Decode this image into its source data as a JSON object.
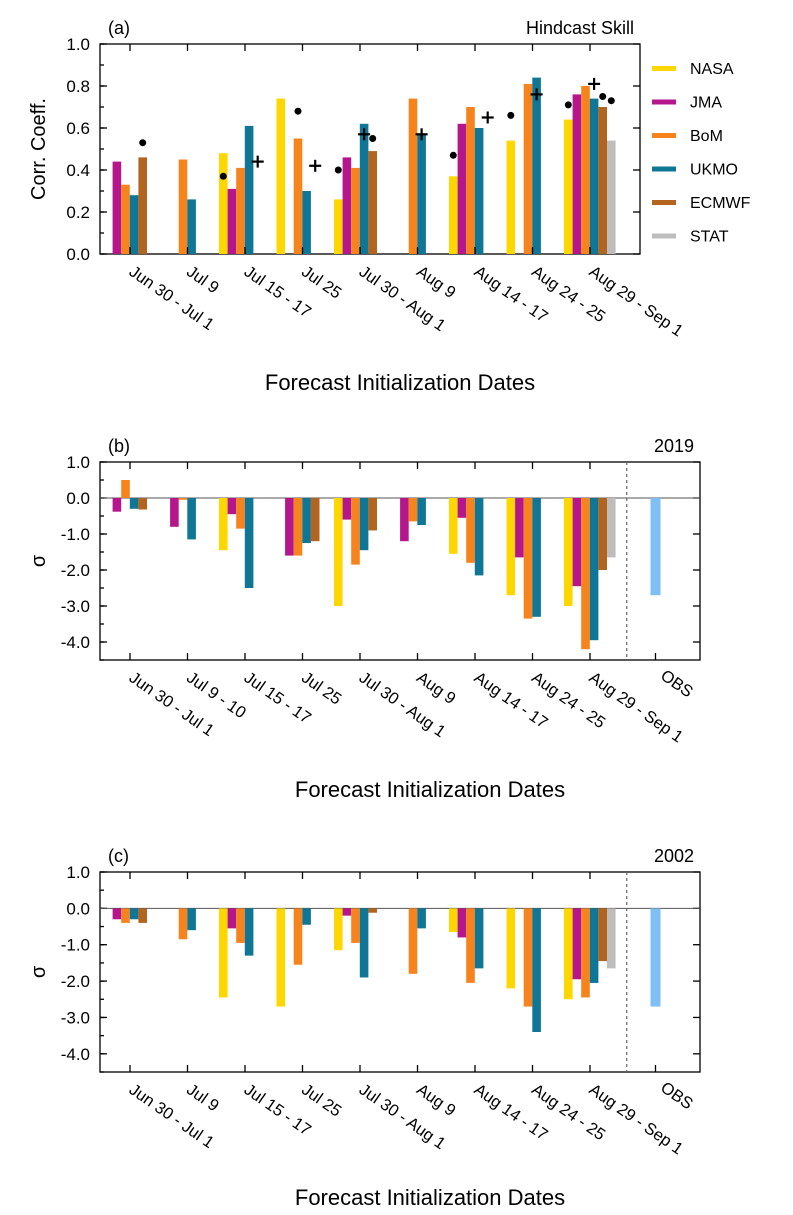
{
  "legend": [
    {
      "name": "NASA",
      "color": "#ffd700"
    },
    {
      "name": "JMA",
      "color": "#b5168c"
    },
    {
      "name": "BoM",
      "color": "#f7831d"
    },
    {
      "name": "UKMO",
      "color": "#0f7696"
    },
    {
      "name": "ECMWF",
      "color": "#b3641e"
    },
    {
      "name": "STAT",
      "color": "#bdbdbd"
    }
  ],
  "chart_data": [
    {
      "type": "bar",
      "panel_label": "(a)",
      "title": "Hindcast Skill",
      "ylabel": "Corr. Coeff.",
      "xlabel": "Forecast Initialization Dates",
      "ylim": [
        0.0,
        1.0
      ],
      "yticks": [
        "0.0",
        "0.2",
        "0.4",
        "0.6",
        "0.8",
        "1.0"
      ],
      "categories": [
        "Jun 30 - Jul 1",
        "Jul 9",
        "Jul 15 - 17",
        "Jul 25",
        "Jul 30 - Aug 1",
        "Aug 9",
        "Aug 14 - 17",
        "Aug 24 - 25",
        "Aug 29 - Sep 1"
      ],
      "series": [
        {
          "name": "NASA",
          "values": [
            null,
            null,
            0.48,
            0.74,
            0.26,
            null,
            0.37,
            0.54,
            0.64
          ]
        },
        {
          "name": "JMA",
          "values": [
            0.44,
            null,
            0.31,
            null,
            0.46,
            null,
            0.62,
            null,
            0.76
          ]
        },
        {
          "name": "BoM",
          "values": [
            0.33,
            0.45,
            0.41,
            0.55,
            0.41,
            0.74,
            0.7,
            0.81,
            0.8
          ]
        },
        {
          "name": "UKMO",
          "values": [
            0.28,
            0.26,
            0.61,
            0.3,
            0.62,
            0.57,
            0.6,
            0.84,
            0.74
          ]
        },
        {
          "name": "ECMWF",
          "values": [
            0.46,
            null,
            null,
            null,
            0.49,
            null,
            null,
            null,
            0.7
          ]
        },
        {
          "name": "STAT",
          "values": [
            null,
            null,
            null,
            null,
            null,
            null,
            null,
            null,
            0.54
          ]
        }
      ],
      "dots": [
        {
          "category": "Jun 30 - Jul 1",
          "slot": 4,
          "value": 0.53
        },
        {
          "category": "Jul 15 - 17",
          "slot": 0,
          "value": 0.37
        },
        {
          "category": "Jul 25",
          "slot": 2,
          "value": 0.68
        },
        {
          "category": "Jul 30 - Aug 1",
          "slot": 0,
          "value": 0.4
        },
        {
          "category": "Jul 30 - Aug 1",
          "slot": 4,
          "value": 0.55
        },
        {
          "category": "Aug 14 - 17",
          "slot": 0,
          "value": 0.47
        },
        {
          "category": "Aug 24 - 25",
          "slot": 0,
          "value": 0.66
        },
        {
          "category": "Aug 29 - Sep 1",
          "slot": 0,
          "value": 0.71
        },
        {
          "category": "Aug 29 - Sep 1",
          "slot": 4,
          "value": 0.75
        },
        {
          "category": "Aug 29 - Sep 1",
          "slot": 5,
          "value": 0.73
        }
      ],
      "crosses": [
        {
          "category": "Jul 15 - 17",
          "slot": 4,
          "value": 0.44
        },
        {
          "category": "Jul 25",
          "slot": 4,
          "value": 0.42
        },
        {
          "category": "Jul 30 - Aug 1",
          "slot": 3,
          "value": 0.57
        },
        {
          "category": "Aug 9",
          "slot": 3,
          "value": 0.57
        },
        {
          "category": "Aug 14 - 17",
          "slot": 4,
          "value": 0.65
        },
        {
          "category": "Aug 24 - 25",
          "slot": 3,
          "value": 0.76
        },
        {
          "category": "Aug 29 - Sep 1",
          "slot": 3,
          "value": 0.81
        }
      ]
    },
    {
      "type": "bar",
      "panel_label": "(b)",
      "year": "2019",
      "ylabel": "σ",
      "xlabel": "Forecast Initialization Dates",
      "ylim": [
        -4.5,
        1.0
      ],
      "yticks": [
        "-4.0",
        "-3.0",
        "-2.0",
        "-1.0",
        "0.0",
        "1.0"
      ],
      "categories": [
        "Jun 30 - Jul 1",
        "Jul 9 - 10",
        "Jul 15 - 17",
        "Jul 25",
        "Jul 30 - Aug 1",
        "Aug 9",
        "Aug 14 - 17",
        "Aug 24 - 25",
        "Aug 29 - Sep 1"
      ],
      "obs_label": "OBS",
      "obs_value": -2.7,
      "obs_color": "#7fbff5",
      "series": [
        {
          "name": "NASA",
          "values": [
            null,
            null,
            -1.45,
            null,
            -3.0,
            null,
            -1.55,
            -2.7,
            -3.0
          ]
        },
        {
          "name": "JMA",
          "values": [
            -0.38,
            -0.8,
            -0.45,
            -1.6,
            -0.6,
            -1.2,
            -0.55,
            -1.65,
            -2.45
          ]
        },
        {
          "name": "BoM",
          "values": [
            0.5,
            -0.05,
            -0.85,
            -1.6,
            -1.85,
            -0.65,
            -1.8,
            -3.35,
            -4.2
          ]
        },
        {
          "name": "UKMO",
          "values": [
            -0.3,
            -1.15,
            -2.5,
            -1.25,
            -1.45,
            -0.75,
            -2.15,
            -3.3,
            -3.95
          ]
        },
        {
          "name": "ECMWF",
          "values": [
            -0.32,
            null,
            null,
            -1.2,
            -0.9,
            null,
            null,
            null,
            -2.0
          ]
        },
        {
          "name": "STAT",
          "values": [
            null,
            null,
            null,
            null,
            null,
            null,
            null,
            null,
            -1.65
          ]
        }
      ]
    },
    {
      "type": "bar",
      "panel_label": "(c)",
      "year": "2002",
      "ylabel": "σ",
      "xlabel": "Forecast Initialization Dates",
      "ylim": [
        -4.5,
        1.0
      ],
      "yticks": [
        "-4.0",
        "-3.0",
        "-2.0",
        "-1.0",
        "0.0",
        "1.0"
      ],
      "categories": [
        "Jun 30 - Jul 1",
        "Jul 9",
        "Jul 15 - 17",
        "Jul 25",
        "Jul 30 - Aug 1",
        "Aug 9",
        "Aug 14 - 17",
        "Aug 24 - 25",
        "Aug 29 - Sep 1"
      ],
      "obs_label": "OBS",
      "obs_value": -2.7,
      "obs_color": "#7fbff5",
      "series": [
        {
          "name": "NASA",
          "values": [
            null,
            null,
            -2.45,
            -2.7,
            -1.15,
            null,
            -0.65,
            -2.2,
            -2.5
          ]
        },
        {
          "name": "JMA",
          "values": [
            -0.3,
            null,
            -0.55,
            null,
            -0.2,
            null,
            -0.8,
            null,
            -1.95
          ]
        },
        {
          "name": "BoM",
          "values": [
            -0.4,
            -0.85,
            -0.95,
            -1.55,
            -0.95,
            -1.8,
            -2.05,
            -2.7,
            -2.45
          ]
        },
        {
          "name": "UKMO",
          "values": [
            -0.3,
            -0.6,
            -1.3,
            -0.45,
            -1.9,
            -0.55,
            -1.65,
            -3.4,
            -2.05
          ]
        },
        {
          "name": "ECMWF",
          "values": [
            -0.4,
            null,
            null,
            null,
            -0.12,
            null,
            null,
            null,
            -1.45
          ]
        },
        {
          "name": "STAT",
          "values": [
            null,
            null,
            null,
            null,
            null,
            null,
            null,
            null,
            -1.65
          ]
        }
      ]
    }
  ]
}
